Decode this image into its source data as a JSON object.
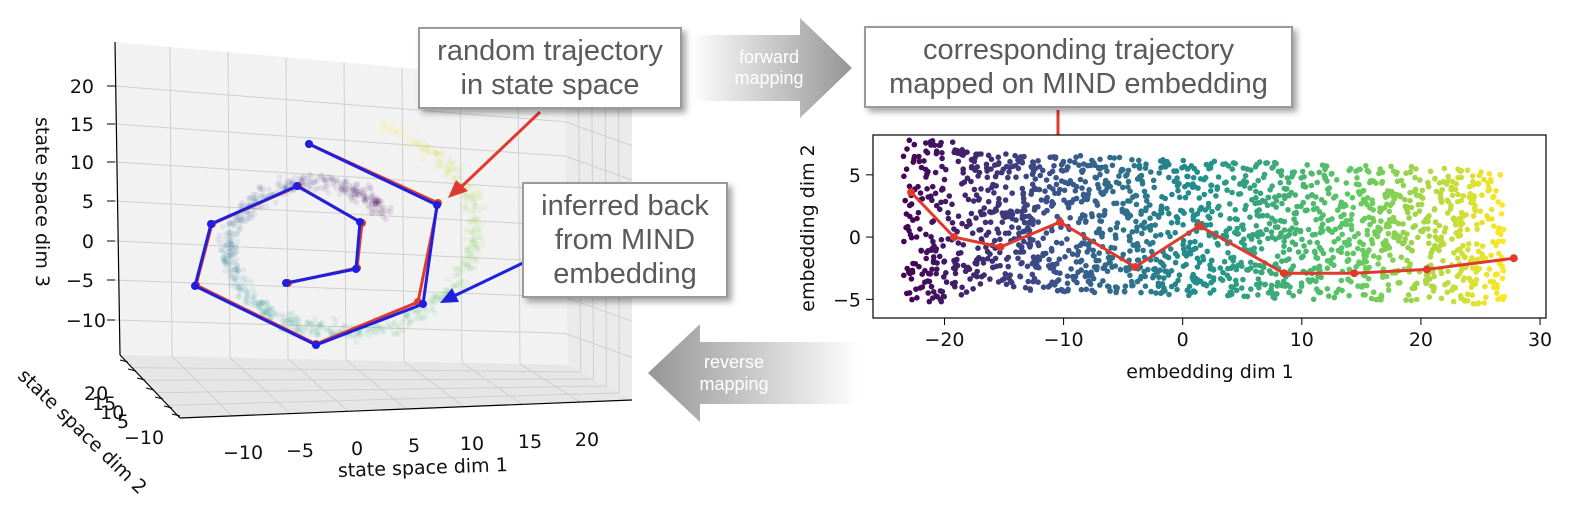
{
  "callouts": {
    "random": [
      "random trajectory",
      "in state space"
    ],
    "inferred": [
      "inferred back",
      "from MIND",
      "embedding"
    ],
    "corresponding": [
      "corresponding trajectory",
      "mapped on MIND embedding"
    ]
  },
  "arrows": {
    "forward": [
      "forward",
      "mapping"
    ],
    "reverse": [
      "reverse",
      "mapping"
    ]
  },
  "left_plot": {
    "xlabel": "state space dim 1",
    "ylabel": "state space dim 2",
    "zlabel": "state space dim 3",
    "x_ticks": [
      "−10",
      "−5",
      "0",
      "5",
      "10",
      "15",
      "20"
    ],
    "y_ticks": [
      "20",
      "15",
      "10",
      "5",
      "−10"
    ],
    "z_ticks": [
      "20",
      "15",
      "10",
      "5",
      "0",
      "−5",
      "−10"
    ]
  },
  "right_plot": {
    "xlabel": "embedding dim 1",
    "ylabel": "embedding dim 2",
    "x_ticks": [
      "−20",
      "−10",
      "0",
      "10",
      "20",
      "30"
    ],
    "y_ticks": [
      "5",
      "0",
      "−5"
    ]
  },
  "colors": {
    "true_trajectory": "#e03a2f",
    "inferred_trajectory": "#1f1fe0",
    "callout_text": "#5a5a5a",
    "arrow_gray": "#9d9d9d"
  },
  "chart_data": [
    {
      "type": "scatter",
      "title": "",
      "xlabel": "embedding dim 1",
      "ylabel": "embedding dim 2",
      "xlim": [
        -26,
        30.5
      ],
      "ylim": [
        -6.5,
        8.2
      ],
      "xticks": [
        -20,
        -10,
        0,
        10,
        20,
        30
      ],
      "yticks": [
        5,
        0,
        -5
      ],
      "point_cloud": {
        "x_range": [
          -23.5,
          27
        ],
        "y_range": [
          -5.8,
          7.8
        ],
        "colormap": "viridis",
        "color_by": "embedding dim 1"
      },
      "series": [
        {
          "x": [
            -22.8,
            -19.2,
            -15.3,
            -10.3,
            -4.0,
            1.4,
            8.5,
            14.4,
            20.5,
            27.8
          ],
          "y": [
            3.6,
            0.0,
            -0.8,
            1.2,
            -2.4,
            0.9,
            -2.9,
            -2.9,
            -2.6,
            -1.7
          ]
        }
      ]
    }
  ]
}
